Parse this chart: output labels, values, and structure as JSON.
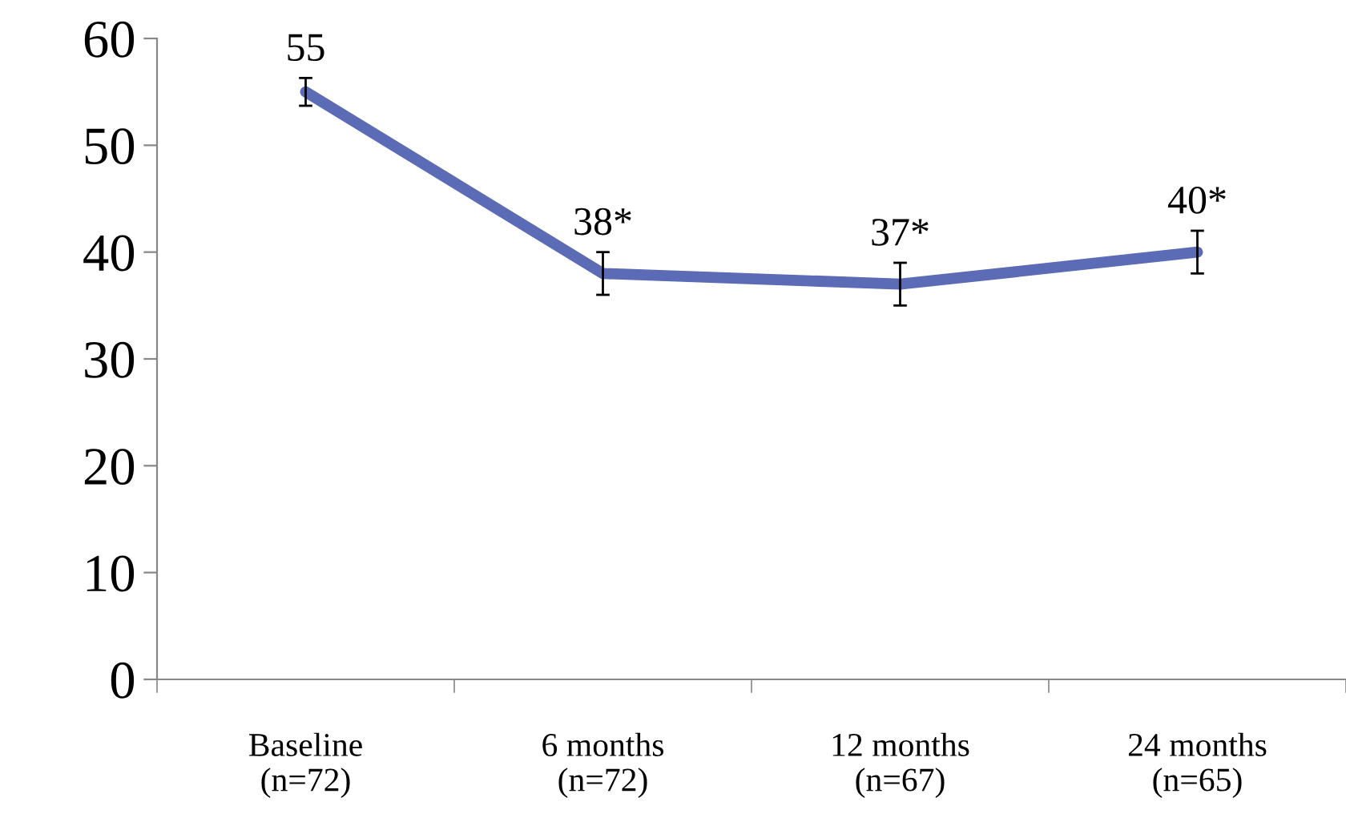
{
  "chart_data": {
    "type": "line",
    "categories": [
      "Baseline\n(n=72)",
      "6 months\n(n=72)",
      "12 months\n(n=67)",
      "24 months\n(n=65)"
    ],
    "series": [
      {
        "color": "#5b6bb5",
        "values": [
          55,
          38,
          37,
          40
        ],
        "errors": [
          1.3,
          2,
          2,
          2
        ],
        "value_labels": [
          "55",
          "38*",
          "37*",
          "40*"
        ]
      }
    ],
    "ylim": [
      0,
      60
    ],
    "yticks": [
      0,
      10,
      20,
      30,
      40,
      50,
      60
    ],
    "grid": false,
    "legend": false,
    "marker": "none",
    "line_style": "solid"
  }
}
